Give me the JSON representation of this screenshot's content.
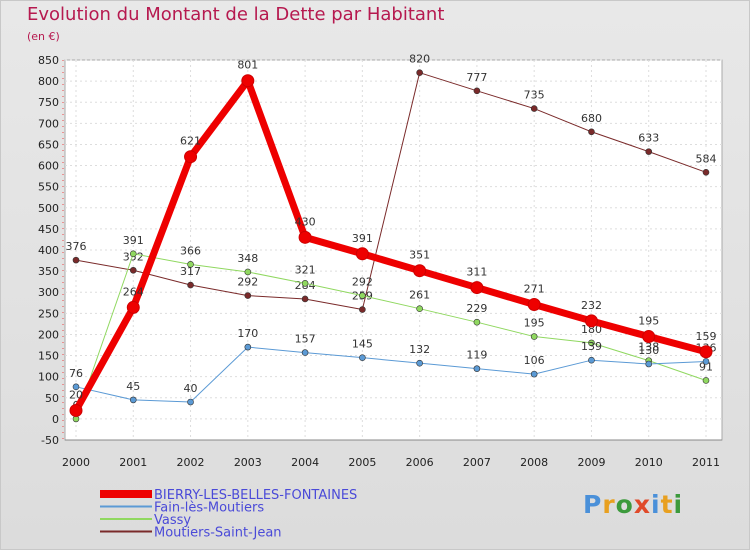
{
  "title": "Evolution du Montant de la Dette par Habitant",
  "unit": "(en €)",
  "logo": {
    "letters": [
      "P",
      "r",
      "o",
      "x",
      "i",
      "t",
      "i"
    ],
    "colors": [
      "#4a90d9",
      "#e8a020",
      "#3c9a3c",
      "#e04a2a",
      "#4a90d9",
      "#e8a020",
      "#3c9a3c"
    ]
  },
  "chart_data": {
    "type": "line",
    "title": "Evolution du Montant de la Dette par Habitant",
    "ylabel": "(en €)",
    "xlabel": "",
    "x": [
      "2000",
      "2001",
      "2002",
      "2003",
      "2004",
      "2005",
      "2006",
      "2007",
      "2008",
      "2009",
      "2010",
      "2011"
    ],
    "ylim": [
      -50,
      850
    ],
    "yticks": [
      -50,
      0,
      50,
      100,
      150,
      200,
      250,
      300,
      350,
      400,
      450,
      500,
      550,
      600,
      650,
      700,
      750,
      800,
      850
    ],
    "grid": true,
    "legend": "bottom-left",
    "series": [
      {
        "name": "BIERRY-LES-BELLES-FONTAINES",
        "color": "#ee0000",
        "width": 7,
        "values": [
          20,
          264,
          621,
          801,
          430,
          391,
          351,
          311,
          271,
          232,
          195,
          159
        ],
        "labels": [
          "20",
          "264",
          "621",
          "801",
          "430",
          "391",
          "351",
          "311",
          "271",
          "232",
          "195",
          "159"
        ]
      },
      {
        "name": "Fain-lès-Moutiers",
        "color": "#5b9ad5",
        "width": 1,
        "values": [
          76,
          45,
          40,
          170,
          157,
          145,
          132,
          119,
          106,
          139,
          130,
          136
        ],
        "labels": [
          "76",
          "45",
          "40",
          "170",
          "157",
          "145",
          "132",
          "119",
          "106",
          "139",
          "130",
          "136"
        ]
      },
      {
        "name": "Vassy",
        "color": "#90d860",
        "width": 1,
        "values": [
          0,
          391,
          366,
          348,
          321,
          292,
          261,
          229,
          195,
          180,
          138,
          91
        ],
        "labels": [
          "0",
          "391",
          "366",
          "348",
          "321",
          "292",
          "261",
          "229",
          "195",
          "180",
          "138",
          "91"
        ]
      },
      {
        "name": "Moutiers-Saint-Jean",
        "color": "#7a2a2a",
        "width": 1,
        "values": [
          376,
          352,
          317,
          292,
          284,
          259,
          820,
          777,
          735,
          680,
          633,
          584
        ],
        "labels": [
          "376",
          "352",
          "317",
          "292",
          "284",
          "259",
          "820",
          "777",
          "735",
          "680",
          "633",
          "584"
        ]
      }
    ]
  }
}
